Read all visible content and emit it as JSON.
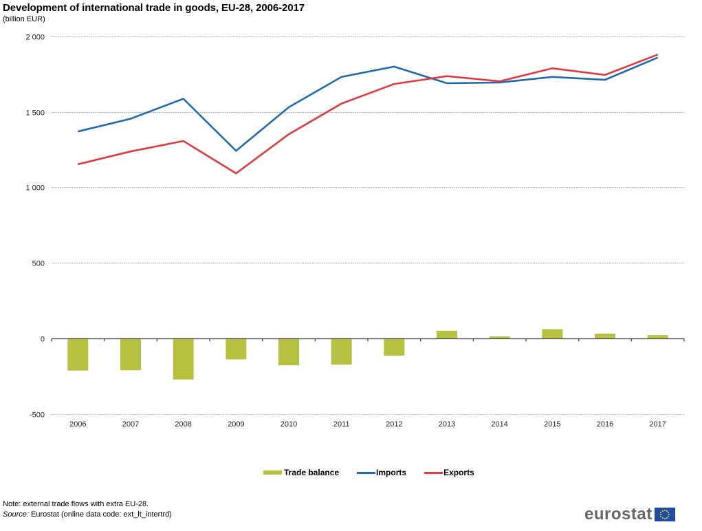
{
  "chart_data": {
    "type": "bar+line",
    "title": "Development of international trade in goods, EU-28, 2006-2017",
    "subtitle": "(billion EUR)",
    "xlabel": "",
    "ylabel": "",
    "ylim": [
      -500,
      2000
    ],
    "yticks": [
      2000,
      1500,
      1000,
      500,
      0,
      -500
    ],
    "ytick_labels": [
      "2 000",
      "1 500",
      "1 000",
      "500",
      "0",
      "-500"
    ],
    "grid": true,
    "categories": [
      "2006",
      "2007",
      "2008",
      "2009",
      "2010",
      "2011",
      "2012",
      "2013",
      "2014",
      "2015",
      "2016",
      "2017"
    ],
    "series": [
      {
        "name": "Trade balance",
        "type": "bar",
        "color": "#b7c140",
        "values": [
          -214,
          -212,
          -273,
          -140,
          -179,
          -175,
          -115,
          50,
          12,
          60,
          30,
          21
        ]
      },
      {
        "name": "Imports",
        "type": "line",
        "color": "#1d6aad",
        "values": [
          1370,
          1455,
          1587,
          1242,
          1531,
          1732,
          1800,
          1690,
          1695,
          1732,
          1713,
          1860
        ]
      },
      {
        "name": "Exports",
        "type": "line",
        "color": "#e03a3e",
        "values": [
          1153,
          1238,
          1307,
          1093,
          1352,
          1555,
          1685,
          1737,
          1703,
          1789,
          1745,
          1880
        ]
      }
    ],
    "legend_position": "bottom"
  },
  "legend": {
    "items": [
      {
        "label": "Trade balance",
        "color": "#b7c140"
      },
      {
        "label": "Imports",
        "color": "#1d6aad"
      },
      {
        "label": "Exports",
        "color": "#e03a3e"
      }
    ]
  },
  "footer": {
    "note": "Note: external trade flows with extra EU-28.",
    "source_label": "Source:",
    "source_text": "Eurostat (online data code: ext_lt_intertrd)",
    "logo_text": "eurostat"
  }
}
